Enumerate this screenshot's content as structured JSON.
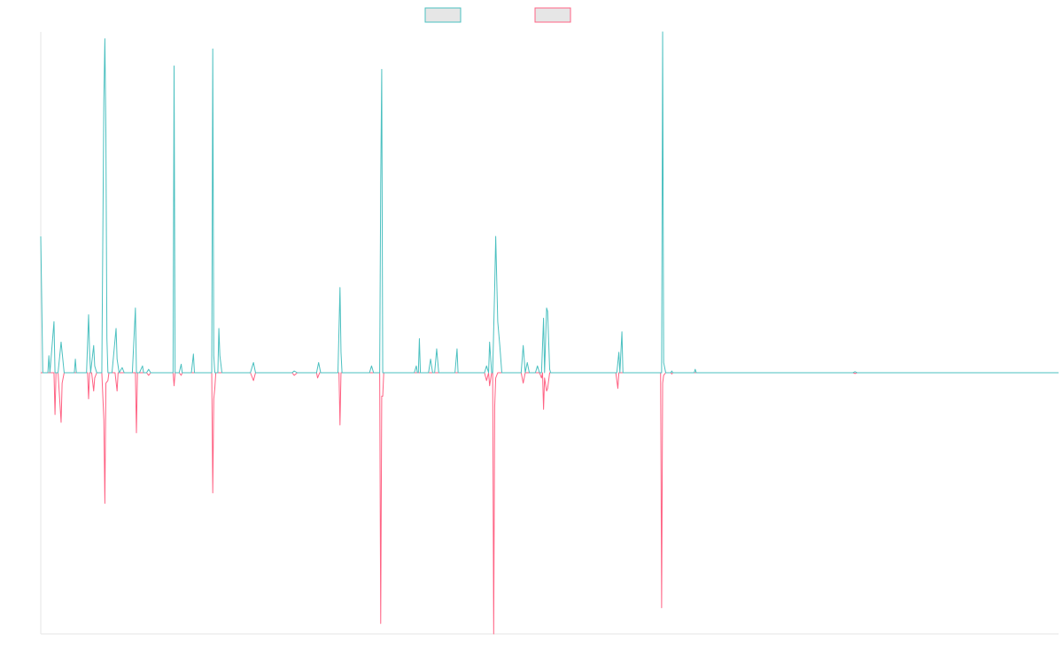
{
  "chart_data": {
    "type": "line",
    "title": "",
    "xlabel": "",
    "ylabel": "",
    "x_range": [
      0,
      1000
    ],
    "y_range": [
      -1000,
      1000
    ],
    "grid": false,
    "legend_position": "top-center",
    "series": [
      {
        "color": "#4bc0c0",
        "fill": "#e6e6e6",
        "points": [
          [
            0,
            400
          ],
          [
            2,
            0
          ],
          [
            7,
            0
          ],
          [
            8,
            50
          ],
          [
            9,
            0
          ],
          [
            13,
            150
          ],
          [
            14,
            0
          ],
          [
            17,
            0
          ],
          [
            20,
            90
          ],
          [
            21,
            60
          ],
          [
            23,
            0
          ],
          [
            33,
            0
          ],
          [
            34,
            40
          ],
          [
            35,
            0
          ],
          [
            40,
            0
          ],
          [
            45,
            0
          ],
          [
            47,
            170
          ],
          [
            48,
            60
          ],
          [
            49,
            0
          ],
          [
            52,
            80
          ],
          [
            53,
            20
          ],
          [
            55,
            0
          ],
          [
            60,
            0
          ],
          [
            62,
            800
          ],
          [
            63,
            980
          ],
          [
            64,
            700
          ],
          [
            65,
            100
          ],
          [
            66,
            0
          ],
          [
            70,
            0
          ],
          [
            74,
            130
          ],
          [
            75,
            40
          ],
          [
            77,
            0
          ],
          [
            80,
            15
          ],
          [
            82,
            0
          ],
          [
            90,
            0
          ],
          [
            93,
            190
          ],
          [
            94,
            0
          ],
          [
            97,
            0
          ],
          [
            100,
            20
          ],
          [
            101,
            0
          ],
          [
            104,
            0
          ],
          [
            106,
            10
          ],
          [
            108,
            0
          ],
          [
            119,
            0
          ],
          [
            130,
            0
          ],
          [
            131,
            900
          ],
          [
            132,
            0
          ],
          [
            136,
            0
          ],
          [
            138,
            25
          ],
          [
            139,
            0
          ],
          [
            148,
            0
          ],
          [
            150,
            55
          ],
          [
            151,
            0
          ],
          [
            168,
            0
          ],
          [
            169,
            950
          ],
          [
            170,
            50
          ],
          [
            171,
            0
          ],
          [
            174,
            0
          ],
          [
            175,
            130
          ],
          [
            176,
            50
          ],
          [
            178,
            0
          ],
          [
            206,
            0
          ],
          [
            209,
            30
          ],
          [
            211,
            0
          ],
          [
            247,
            0
          ],
          [
            249,
            5
          ],
          [
            252,
            0
          ],
          [
            271,
            0
          ],
          [
            273,
            30
          ],
          [
            275,
            0
          ],
          [
            292,
            0
          ],
          [
            294,
            250
          ],
          [
            295,
            60
          ],
          [
            296,
            0
          ],
          [
            323,
            0
          ],
          [
            325,
            20
          ],
          [
            327,
            0
          ],
          [
            333,
            0
          ],
          [
            334,
            550
          ],
          [
            335,
            890
          ],
          [
            336,
            0
          ],
          [
            343,
            0
          ],
          [
            367,
            0
          ],
          [
            369,
            20
          ],
          [
            370,
            0
          ],
          [
            371,
            0
          ],
          [
            372,
            100
          ],
          [
            373,
            0
          ],
          [
            381,
            0
          ],
          [
            383,
            40
          ],
          [
            385,
            0
          ],
          [
            387,
            0
          ],
          [
            389,
            70
          ],
          [
            391,
            0
          ],
          [
            407,
            0
          ],
          [
            409,
            70
          ],
          [
            410,
            0
          ],
          [
            436,
            0
          ],
          [
            438,
            20
          ],
          [
            440,
            0
          ],
          [
            441,
            90
          ],
          [
            443,
            0
          ],
          [
            444,
            0
          ],
          [
            446,
            250
          ],
          [
            447,
            400
          ],
          [
            449,
            150
          ],
          [
            451,
            80
          ],
          [
            453,
            0
          ],
          [
            472,
            0
          ],
          [
            474,
            80
          ],
          [
            476,
            0
          ],
          [
            478,
            30
          ],
          [
            480,
            0
          ],
          [
            486,
            0
          ],
          [
            488,
            20
          ],
          [
            490,
            0
          ],
          [
            492,
            0
          ],
          [
            494,
            160
          ],
          [
            495,
            0
          ],
          [
            497,
            190
          ],
          [
            498,
            180
          ],
          [
            500,
            10
          ],
          [
            501,
            0
          ],
          [
            550,
            0
          ],
          [
            566,
            0
          ],
          [
            568,
            60
          ],
          [
            569,
            0
          ],
          [
            571,
            120
          ],
          [
            572,
            0
          ],
          [
            605,
            0
          ],
          [
            610,
            0
          ],
          [
            611,
            1000
          ],
          [
            612,
            30
          ],
          [
            614,
            0
          ],
          [
            619,
            0
          ],
          [
            620,
            5
          ],
          [
            621,
            0
          ],
          [
            642,
            0
          ],
          [
            643,
            10
          ],
          [
            644,
            0
          ],
          [
            798,
            0
          ],
          [
            800,
            3
          ],
          [
            802,
            0
          ],
          [
            1000,
            0
          ]
        ]
      },
      {
        "color": "#ff6384",
        "fill": "#e6e6e6",
        "points": [
          [
            0,
            0
          ],
          [
            13,
            0
          ],
          [
            14,
            -160
          ],
          [
            15,
            0
          ],
          [
            17,
            0
          ],
          [
            20,
            -190
          ],
          [
            21,
            -40
          ],
          [
            23,
            0
          ],
          [
            46,
            0
          ],
          [
            47,
            -100
          ],
          [
            48,
            0
          ],
          [
            50,
            0
          ],
          [
            52,
            -70
          ],
          [
            53,
            -20
          ],
          [
            55,
            0
          ],
          [
            60,
            0
          ],
          [
            62,
            -180
          ],
          [
            63,
            -500
          ],
          [
            64,
            -40
          ],
          [
            66,
            -30
          ],
          [
            67,
            0
          ],
          [
            73,
            0
          ],
          [
            75,
            -70
          ],
          [
            76,
            0
          ],
          [
            93,
            0
          ],
          [
            94,
            -230
          ],
          [
            95,
            0
          ],
          [
            104,
            0
          ],
          [
            106,
            -10
          ],
          [
            108,
            0
          ],
          [
            130,
            0
          ],
          [
            131,
            -50
          ],
          [
            132,
            0
          ],
          [
            136,
            0
          ],
          [
            138,
            -10
          ],
          [
            139,
            0
          ],
          [
            168,
            0
          ],
          [
            169,
            -460
          ],
          [
            170,
            -100
          ],
          [
            171,
            -60
          ],
          [
            172,
            0
          ],
          [
            206,
            0
          ],
          [
            209,
            -30
          ],
          [
            211,
            0
          ],
          [
            247,
            0
          ],
          [
            249,
            -10
          ],
          [
            252,
            0
          ],
          [
            271,
            0
          ],
          [
            272,
            -20
          ],
          [
            274,
            0
          ],
          [
            293,
            0
          ],
          [
            294,
            -200
          ],
          [
            295,
            0
          ],
          [
            333,
            0
          ],
          [
            334,
            -960
          ],
          [
            335,
            -90
          ],
          [
            336,
            -90
          ],
          [
            337,
            0
          ],
          [
            436,
            0
          ],
          [
            438,
            -30
          ],
          [
            440,
            0
          ],
          [
            441,
            -50
          ],
          [
            443,
            0
          ],
          [
            444,
            0
          ],
          [
            445,
            -1000
          ],
          [
            446,
            -130
          ],
          [
            447,
            -20
          ],
          [
            449,
            0
          ],
          [
            472,
            0
          ],
          [
            474,
            -40
          ],
          [
            476,
            0
          ],
          [
            490,
            0
          ],
          [
            492,
            -20
          ],
          [
            493,
            0
          ],
          [
            494,
            -140
          ],
          [
            495,
            -20
          ],
          [
            497,
            -70
          ],
          [
            498,
            -60
          ],
          [
            500,
            0
          ],
          [
            550,
            0
          ],
          [
            565,
            0
          ],
          [
            567,
            -60
          ],
          [
            568,
            0
          ],
          [
            605,
            0
          ],
          [
            609,
            0
          ],
          [
            610,
            -900
          ],
          [
            611,
            -40
          ],
          [
            612,
            -10
          ],
          [
            614,
            0
          ],
          [
            619,
            0
          ],
          [
            620,
            -5
          ],
          [
            621,
            0
          ],
          [
            798,
            0
          ],
          [
            800,
            -3
          ],
          [
            802,
            0
          ],
          [
            1000,
            0
          ]
        ]
      }
    ]
  }
}
